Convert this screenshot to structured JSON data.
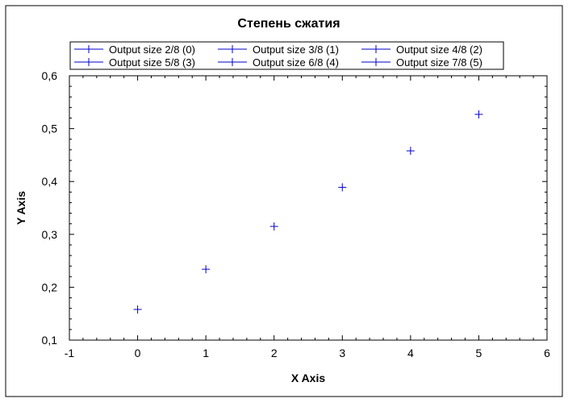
{
  "chart_data": {
    "type": "scatter",
    "title": "Степень сжатия",
    "xlabel": "X Axis",
    "ylabel": "Y Axis",
    "xlim": [
      -1,
      6
    ],
    "ylim": [
      0.1,
      0.6
    ],
    "xticks": [
      "-1",
      "0",
      "1",
      "2",
      "3",
      "4",
      "5",
      "6"
    ],
    "yticks": [
      "0,1",
      "0,2",
      "0,3",
      "0,4",
      "0,5",
      "0,6"
    ],
    "grid": false,
    "legend_position": "top",
    "marker": "plus",
    "series": [
      {
        "name": "Output size 2/8 (0)",
        "x": [
          0
        ],
        "y": [
          0.158
        ],
        "color": "#0000cc"
      },
      {
        "name": "Output size 3/8 (1)",
        "x": [
          1
        ],
        "y": [
          0.234
        ],
        "color": "#0000cc"
      },
      {
        "name": "Output size 4/8 (2)",
        "x": [
          2
        ],
        "y": [
          0.315
        ],
        "color": "#0000cc"
      },
      {
        "name": "Output size 5/8 (3)",
        "x": [
          3
        ],
        "y": [
          0.389
        ],
        "color": "#0000cc"
      },
      {
        "name": "Output size 6/8 (4)",
        "x": [
          4
        ],
        "y": [
          0.458
        ],
        "color": "#0000cc"
      },
      {
        "name": "Output size 7/8 (5)",
        "x": [
          5
        ],
        "y": [
          0.527
        ],
        "color": "#0000cc"
      }
    ]
  }
}
